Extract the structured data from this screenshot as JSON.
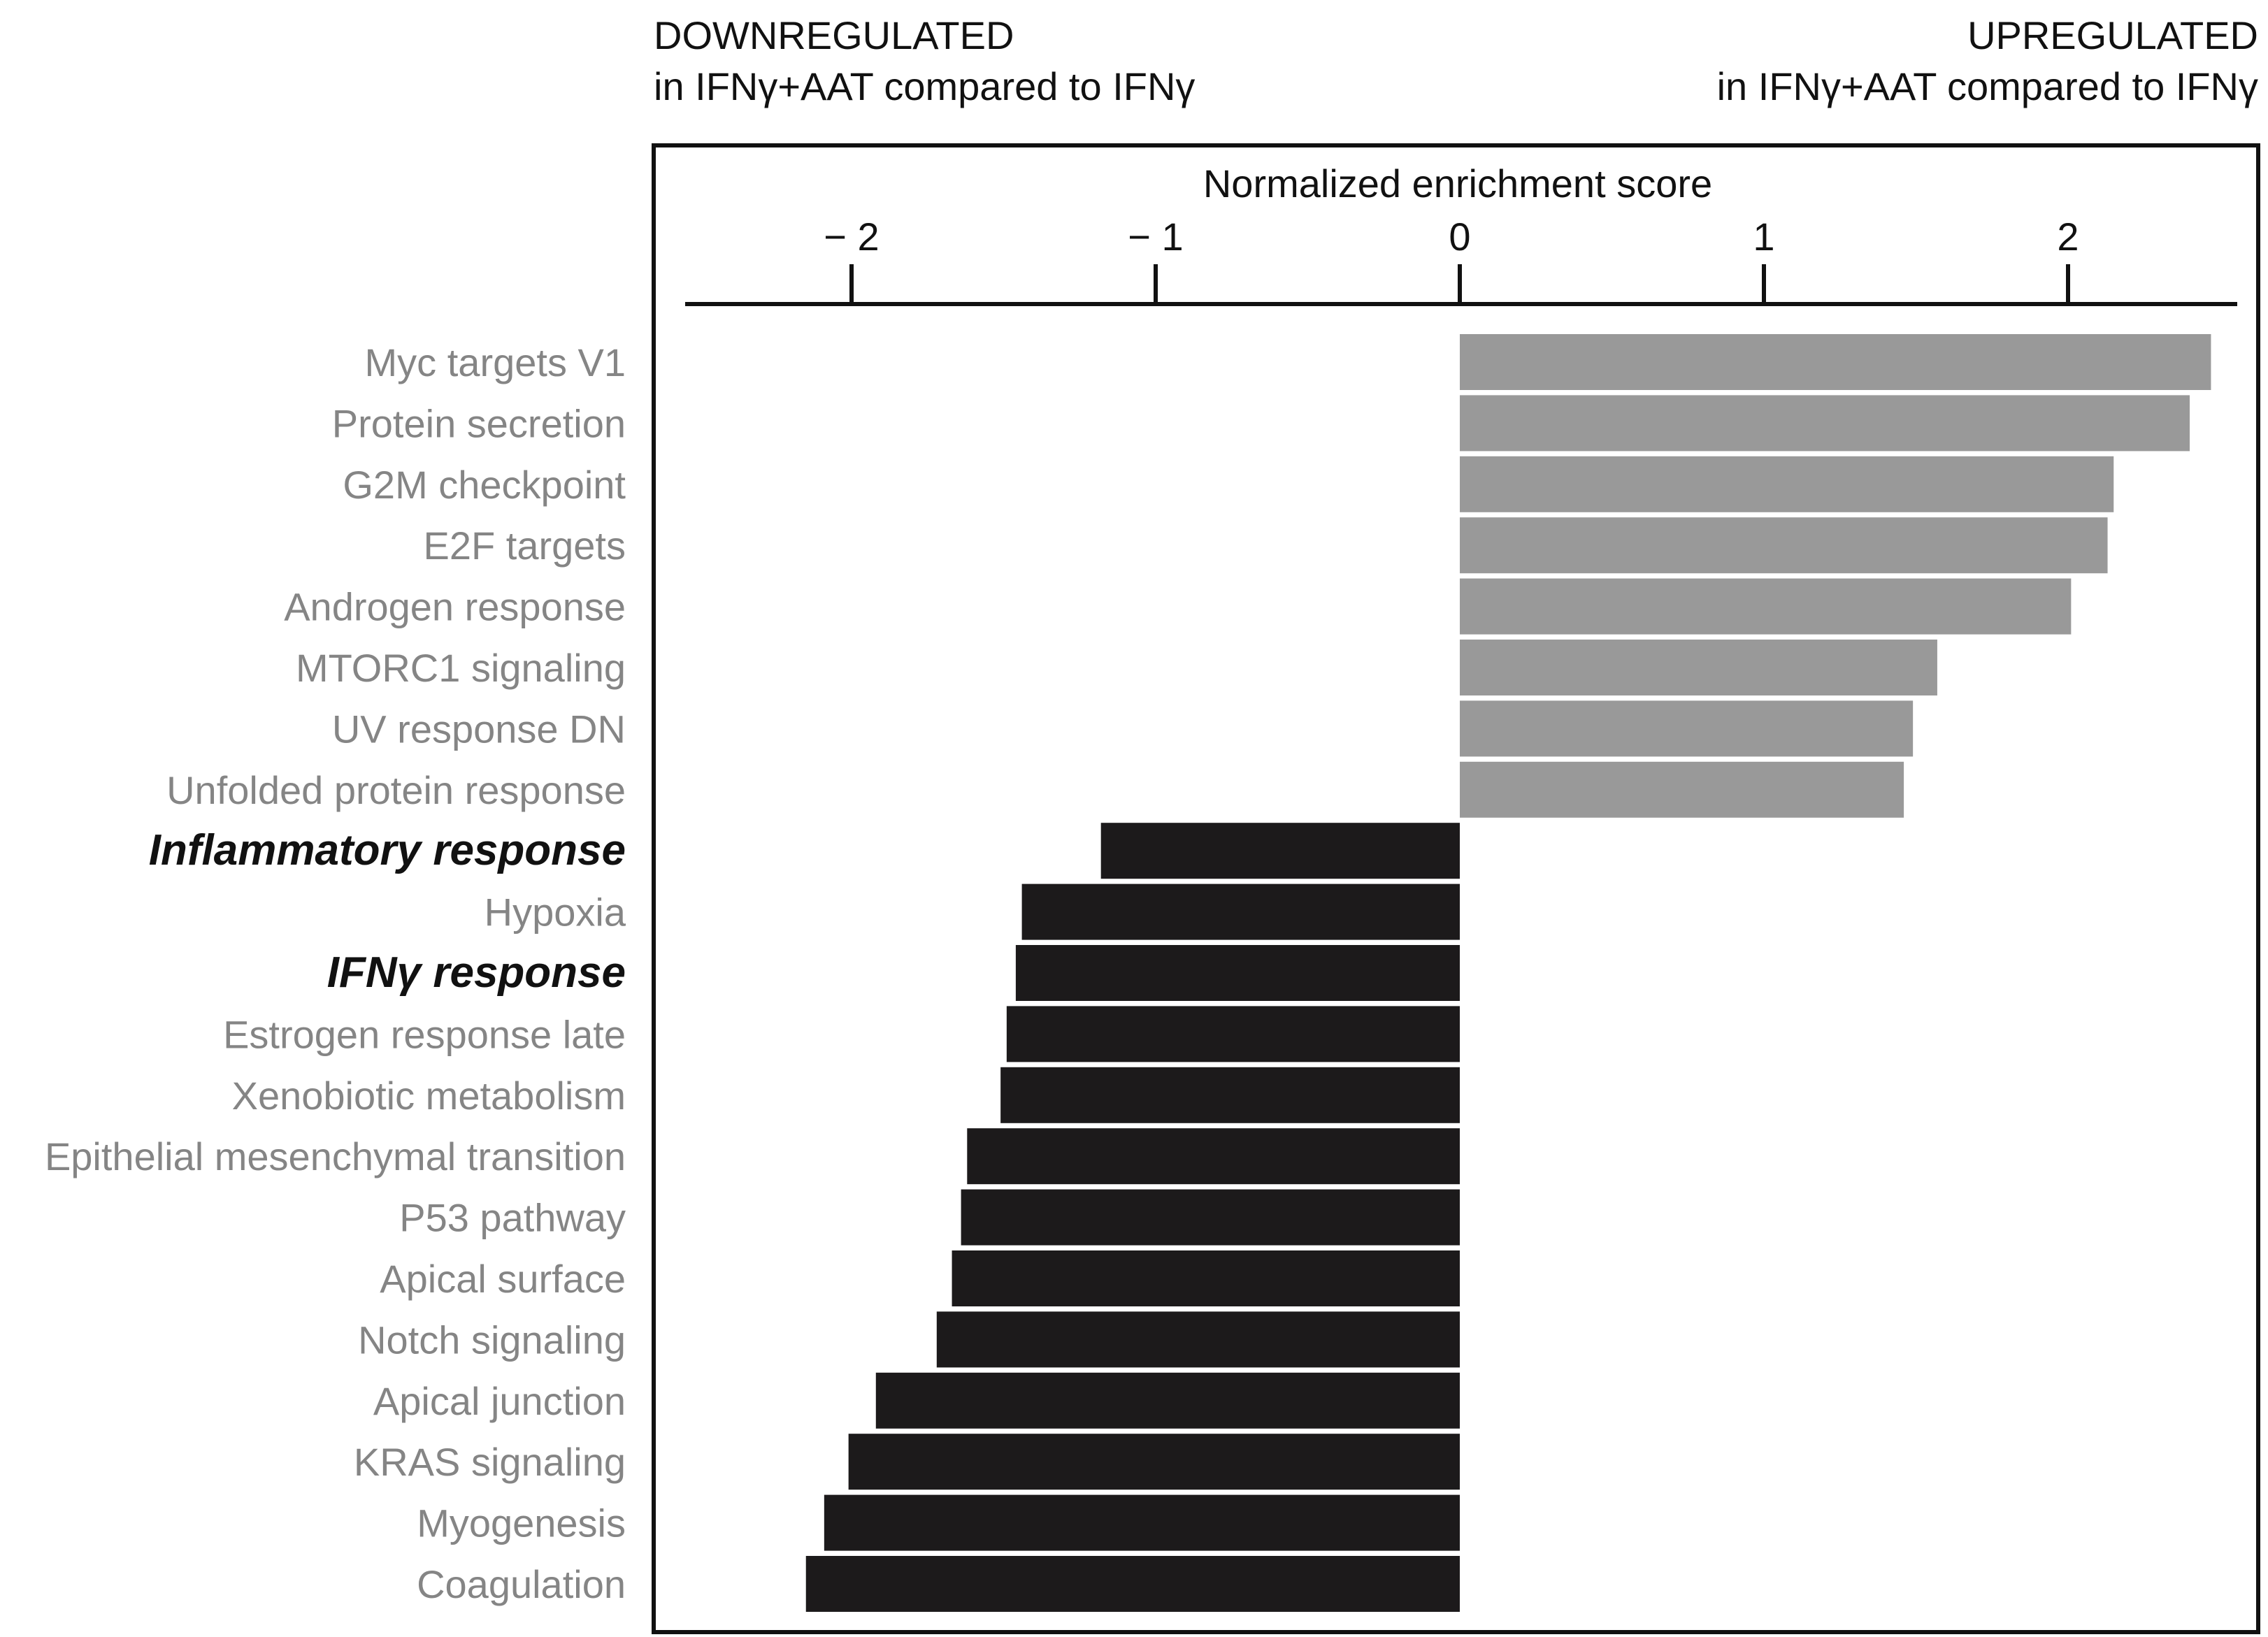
{
  "header": {
    "left_line1": "DOWNREGULATED",
    "left_line2": "in IFNγ+AAT compared to IFNγ",
    "right_line1": "UPREGULATED",
    "right_line2": "in IFNγ+AAT compared to IFNγ"
  },
  "chart_data": {
    "type": "bar",
    "orientation": "horizontal",
    "xlabel": "Normalized enrichment score",
    "xlim": [
      -2.55,
      2.55
    ],
    "xticks": [
      -2,
      -1,
      0,
      1,
      2
    ],
    "xtick_labels": [
      "− 2",
      "− 1",
      "0",
      "1",
      "2"
    ],
    "axis_position": "top",
    "grid": false,
    "colors": {
      "up": "#999999",
      "down": "#1c1a1b",
      "label": "#858585",
      "label_highlight": "#111111"
    },
    "categories": [
      "Myc targets V1",
      "Protein secretion",
      "G2M checkpoint",
      "E2F targets",
      "Androgen response",
      "MTORC1 signaling",
      "UV response DN",
      "Unfolded protein response",
      "Inflammatory response",
      "Hypoxia",
      "IFNγ response",
      "Estrogen response late",
      "Xenobiotic metabolism",
      "Epithelial mesenchymal transition",
      "P53 pathway",
      "Apical surface",
      "Notch signaling",
      "Apical junction",
      "KRAS signaling",
      "Myogenesis",
      "Coagulation"
    ],
    "values": [
      2.47,
      2.4,
      2.15,
      2.13,
      2.01,
      1.57,
      1.49,
      1.46,
      -1.18,
      -1.44,
      -1.46,
      -1.49,
      -1.51,
      -1.62,
      -1.64,
      -1.67,
      -1.72,
      -1.92,
      -2.01,
      -2.09,
      -2.15
    ],
    "highlighted": [
      "Inflammatory response",
      "IFNγ response"
    ]
  }
}
